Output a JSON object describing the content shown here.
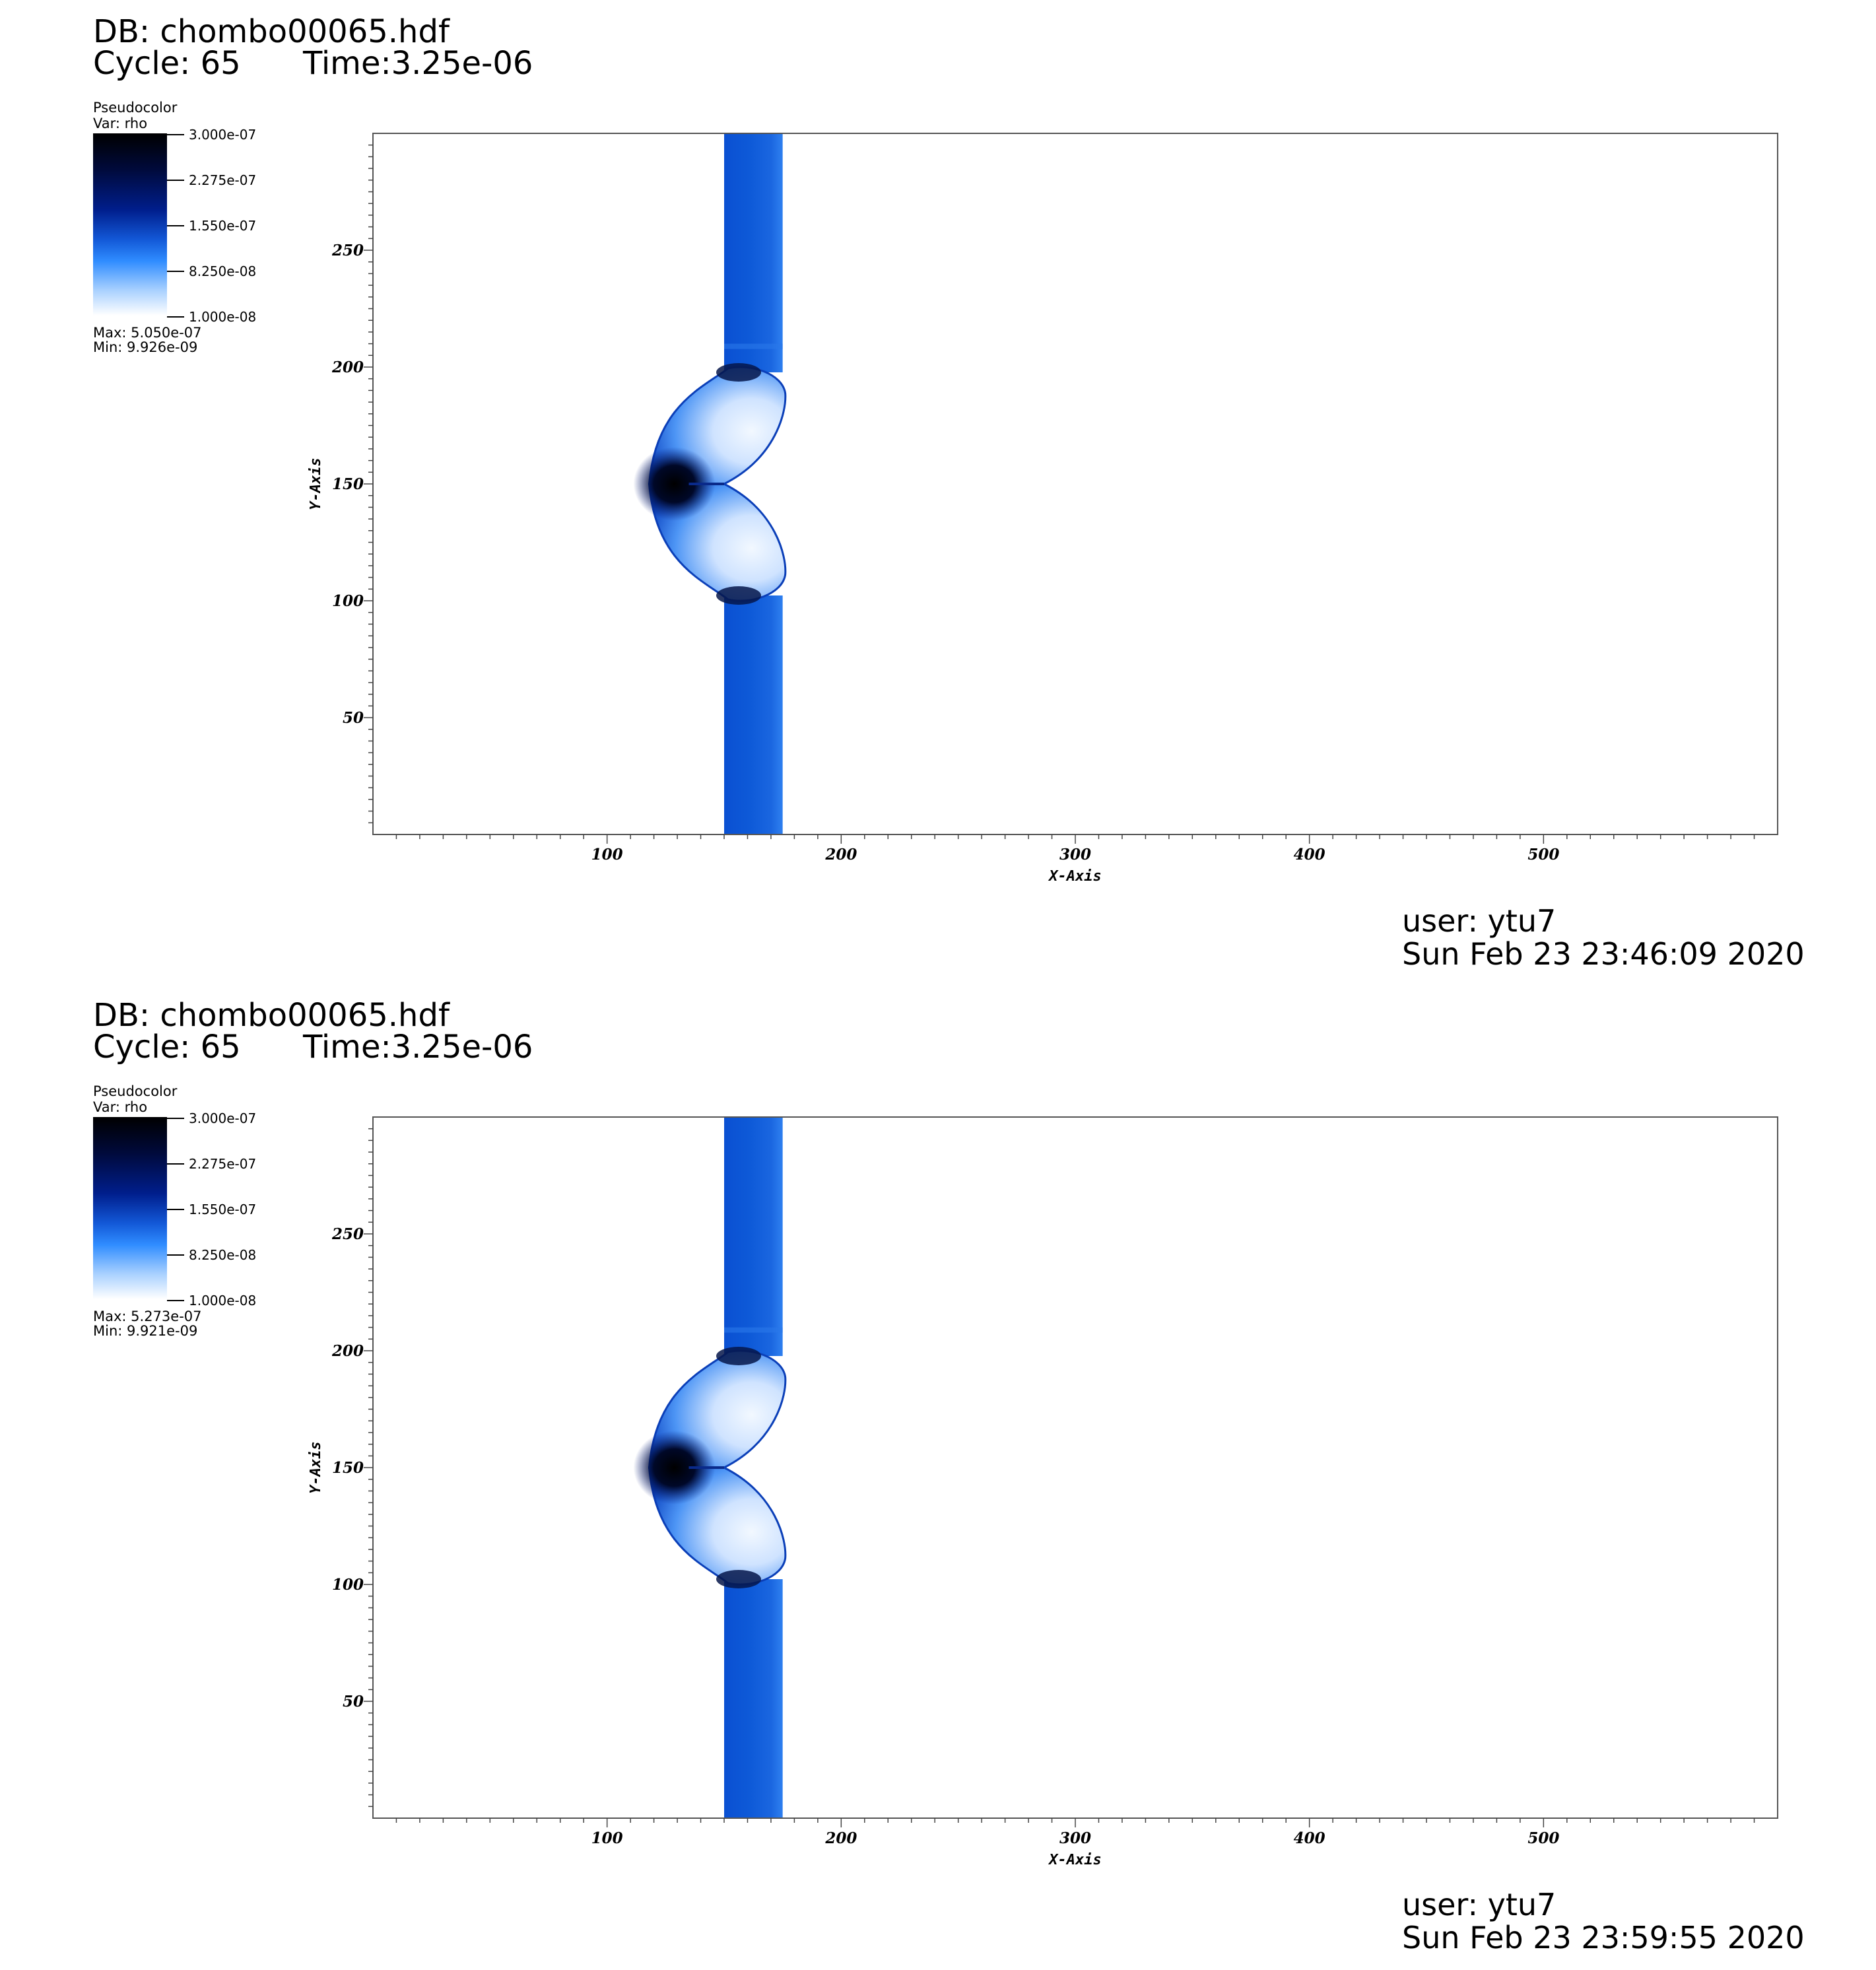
{
  "panels": [
    {
      "db_title": "DB: chombo00065.hdf",
      "cycle": "Cycle: 65",
      "time": "Time:3.25e-06",
      "legend": {
        "plot_type": "Pseudocolor",
        "variable": "Var: rho",
        "tick_labels": [
          "3.000e-07",
          "2.275e-07",
          "1.550e-07",
          "8.250e-08",
          "1.000e-08"
        ],
        "max_label": "Max:  5.050e-07",
        "min_label": "Min:  9.926e-09",
        "colors": [
          "#000000",
          "#001e8c",
          "#1257d6",
          "#2f8cff",
          "#ffffff"
        ]
      },
      "user": "user: ytu7",
      "timestamp": "Sun Feb 23 23:46:09 2020"
    },
    {
      "db_title": "DB: chombo00065.hdf",
      "cycle": "Cycle: 65",
      "time": "Time:3.25e-06",
      "legend": {
        "plot_type": "Pseudocolor",
        "variable": "Var: rho",
        "tick_labels": [
          "3.000e-07",
          "2.275e-07",
          "1.550e-07",
          "8.250e-08",
          "1.000e-08"
        ],
        "max_label": "Max:  5.273e-07",
        "min_label": "Min:  9.921e-09",
        "colors": [
          "#000000",
          "#001e8c",
          "#1257d6",
          "#2f8cff",
          "#ffffff"
        ]
      },
      "user": "user: ytu7",
      "timestamp": "Sun Feb 23 23:59:55 2020"
    }
  ],
  "chart_data": [
    {
      "type": "heatmap",
      "variable": "rho",
      "xlabel": "X-Axis",
      "ylabel": "Y-Axis",
      "xlim": [
        0,
        600
      ],
      "ylim": [
        0,
        300
      ],
      "xticks": [
        100,
        200,
        300,
        400,
        500
      ],
      "yticks": [
        50,
        100,
        150,
        200,
        250
      ],
      "colorbar_range": [
        1e-08,
        3e-07
      ],
      "features": {
        "slab_x_range": [
          150,
          175
        ],
        "bubble_center": [
          150,
          150
        ],
        "bubble_x_range": [
          118,
          175
        ],
        "bubble_y_range": [
          100,
          200
        ]
      }
    },
    {
      "type": "heatmap",
      "variable": "rho",
      "xlabel": "X-Axis",
      "ylabel": "Y-Axis",
      "xlim": [
        0,
        600
      ],
      "ylim": [
        0,
        300
      ],
      "xticks": [
        100,
        200,
        300,
        400,
        500
      ],
      "yticks": [
        50,
        100,
        150,
        200,
        250
      ],
      "colorbar_range": [
        1e-08,
        3e-07
      ],
      "features": {
        "slab_x_range": [
          150,
          175
        ],
        "bubble_center": [
          150,
          150
        ],
        "bubble_x_range": [
          118,
          175
        ],
        "bubble_y_range": [
          100,
          200
        ]
      }
    }
  ]
}
